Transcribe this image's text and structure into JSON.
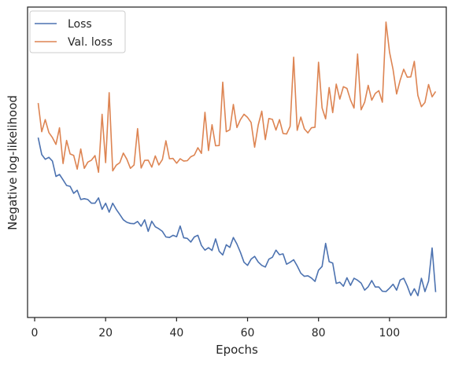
{
  "chart_data": {
    "type": "line",
    "xlabel": "Epochs",
    "ylabel": "Negative log-likelihood",
    "xlim": [
      -2,
      116
    ],
    "xticks": [
      0,
      20,
      40,
      60,
      80,
      100
    ],
    "yticks": [],
    "ylim": [
      0,
      1
    ],
    "grid": false,
    "legend": "top-left",
    "series": [
      {
        "name": "Loss",
        "color": "#4c72b0",
        "x": [
          1,
          2,
          3,
          4,
          5,
          6,
          7,
          8,
          9,
          10,
          11,
          12,
          13,
          14,
          15,
          16,
          17,
          18,
          19,
          20,
          21,
          22,
          23,
          24,
          25,
          26,
          27,
          28,
          29,
          30,
          31,
          32,
          33,
          34,
          35,
          36,
          37,
          38,
          39,
          40,
          41,
          42,
          43,
          44,
          45,
          46,
          47,
          48,
          49,
          50,
          51,
          52,
          53,
          54,
          55,
          56,
          57,
          58,
          59,
          60,
          61,
          62,
          63,
          64,
          65,
          66,
          67,
          68,
          69,
          70,
          71,
          72,
          73,
          74,
          75,
          76,
          77,
          78,
          79,
          80,
          81,
          82,
          83,
          84,
          85,
          86,
          87,
          88,
          89,
          90,
          91,
          92,
          93,
          94,
          95,
          96,
          97,
          98,
          99,
          100,
          101,
          102,
          103,
          104,
          105,
          106,
          107,
          108,
          109,
          110,
          111,
          112,
          113
        ],
        "values": [
          0.589,
          0.529,
          0.512,
          0.519,
          0.506,
          0.451,
          0.458,
          0.439,
          0.419,
          0.416,
          0.391,
          0.402,
          0.369,
          0.372,
          0.369,
          0.356,
          0.356,
          0.375,
          0.334,
          0.356,
          0.324,
          0.356,
          0.334,
          0.316,
          0.297,
          0.288,
          0.284,
          0.283,
          0.291,
          0.274,
          0.297,
          0.256,
          0.292,
          0.272,
          0.265,
          0.256,
          0.236,
          0.234,
          0.242,
          0.237,
          0.275,
          0.233,
          0.231,
          0.218,
          0.236,
          0.242,
          0.206,
          0.189,
          0.198,
          0.188,
          0.229,
          0.185,
          0.172,
          0.208,
          0.199,
          0.234,
          0.211,
          0.181,
          0.146,
          0.135,
          0.157,
          0.167,
          0.147,
          0.135,
          0.129,
          0.157,
          0.164,
          0.189,
          0.173,
          0.176,
          0.139,
          0.146,
          0.155,
          0.133,
          0.107,
          0.096,
          0.098,
          0.09,
          0.078,
          0.118,
          0.131,
          0.213,
          0.148,
          0.143,
          0.071,
          0.075,
          0.061,
          0.091,
          0.064,
          0.089,
          0.082,
          0.072,
          0.047,
          0.059,
          0.081,
          0.058,
          0.058,
          0.043,
          0.042,
          0.054,
          0.068,
          0.047,
          0.083,
          0.089,
          0.062,
          0.028,
          0.052,
          0.027,
          0.089,
          0.042,
          0.079,
          0.197,
          0.04
        ]
      },
      {
        "name": "Val. loss",
        "color": "#dd8452",
        "x": [
          1,
          2,
          3,
          4,
          5,
          6,
          7,
          8,
          9,
          10,
          11,
          12,
          13,
          14,
          15,
          16,
          17,
          18,
          19,
          20,
          21,
          22,
          23,
          24,
          25,
          26,
          27,
          28,
          29,
          30,
          31,
          32,
          33,
          34,
          35,
          36,
          37,
          38,
          39,
          40,
          41,
          42,
          43,
          44,
          45,
          46,
          47,
          48,
          49,
          50,
          51,
          52,
          53,
          54,
          55,
          56,
          57,
          58,
          59,
          60,
          61,
          62,
          63,
          64,
          65,
          66,
          67,
          68,
          69,
          70,
          71,
          72,
          73,
          74,
          75,
          76,
          77,
          78,
          79,
          80,
          81,
          82,
          83,
          84,
          85,
          86,
          87,
          88,
          89,
          90,
          91,
          92,
          93,
          94,
          95,
          96,
          97,
          98,
          99,
          100,
          101,
          102,
          103,
          104,
          105,
          106,
          107,
          108,
          109,
          110,
          111,
          112,
          113
        ],
        "values": [
          0.712,
          0.61,
          0.653,
          0.607,
          0.589,
          0.565,
          0.624,
          0.497,
          0.579,
          0.531,
          0.526,
          0.477,
          0.549,
          0.48,
          0.502,
          0.509,
          0.525,
          0.466,
          0.672,
          0.5,
          0.749,
          0.471,
          0.491,
          0.5,
          0.534,
          0.512,
          0.48,
          0.492,
          0.621,
          0.481,
          0.508,
          0.509,
          0.484,
          0.524,
          0.492,
          0.511,
          0.578,
          0.514,
          0.515,
          0.498,
          0.514,
          0.506,
          0.507,
          0.521,
          0.527,
          0.553,
          0.533,
          0.679,
          0.543,
          0.635,
          0.56,
          0.561,
          0.786,
          0.61,
          0.617,
          0.707,
          0.625,
          0.653,
          0.672,
          0.661,
          0.643,
          0.555,
          0.634,
          0.683,
          0.582,
          0.657,
          0.654,
          0.616,
          0.653,
          0.604,
          0.602,
          0.629,
          0.875,
          0.615,
          0.662,
          0.62,
          0.606,
          0.624,
          0.626,
          0.857,
          0.695,
          0.656,
          0.767,
          0.678,
          0.779,
          0.726,
          0.77,
          0.764,
          0.723,
          0.694,
          0.886,
          0.688,
          0.715,
          0.775,
          0.722,
          0.746,
          0.756,
          0.715,
          1.0,
          0.893,
          0.831,
          0.744,
          0.793,
          0.832,
          0.804,
          0.805,
          0.86,
          0.739,
          0.699,
          0.714,
          0.778,
          0.734,
          0.753
        ]
      }
    ]
  }
}
